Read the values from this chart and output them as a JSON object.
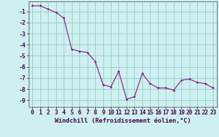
{
  "x": [
    0,
    1,
    2,
    3,
    4,
    5,
    6,
    7,
    8,
    9,
    10,
    11,
    12,
    13,
    14,
    15,
    16,
    17,
    18,
    19,
    20,
    21,
    22,
    23
  ],
  "y": [
    -0.5,
    -0.5,
    -0.8,
    -1.1,
    -1.6,
    -4.4,
    -4.6,
    -4.7,
    -5.5,
    -7.6,
    -7.8,
    -6.4,
    -8.9,
    -8.7,
    -6.6,
    -7.5,
    -7.9,
    -7.9,
    -8.1,
    -7.2,
    -7.1,
    -7.4,
    -7.5,
    -7.9
  ],
  "line_color": "#882288",
  "marker": "D",
  "marker_size": 2.0,
  "bg_color": "#cff0f0",
  "grid_color": "#99cccc",
  "xlabel": "Windchill (Refroidissement éolien,°C)",
  "xlabel_fontsize": 6.5,
  "tick_fontsize": 6.0,
  "ylim": [
    -9.6,
    -0.1
  ],
  "xlim": [
    -0.5,
    23.5
  ],
  "yticks": [
    -1,
    -2,
    -3,
    -4,
    -5,
    -6,
    -7,
    -8,
    -9
  ],
  "xticks": [
    0,
    1,
    2,
    3,
    4,
    5,
    6,
    7,
    8,
    9,
    10,
    11,
    12,
    13,
    14,
    15,
    16,
    17,
    18,
    19,
    20,
    21,
    22,
    23
  ],
  "spine_color": "#666666"
}
